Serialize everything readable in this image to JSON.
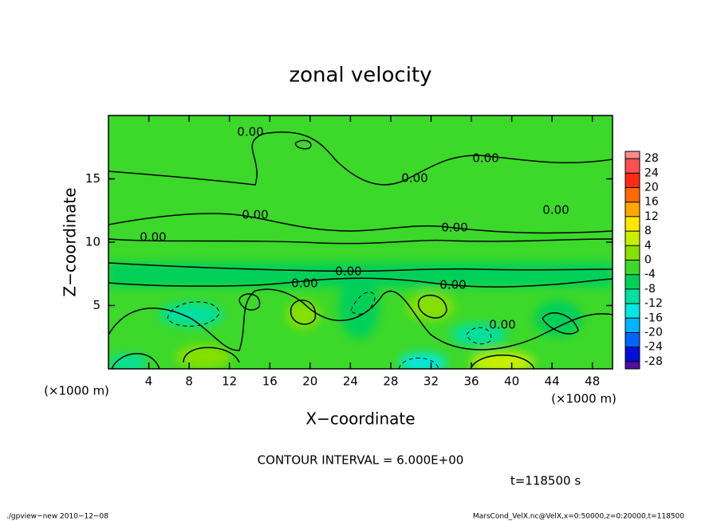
{
  "chart_data": {
    "type": "contour",
    "title": "zonal velocity",
    "x_label": "X−coordinate",
    "y_label": "Z−coordinate",
    "x_unit_label": "(×1000 m)",
    "y_unit_label": "(×1000 m)",
    "xlim": [
      0,
      50
    ],
    "xticks": [
      4,
      8,
      12,
      16,
      20,
      24,
      28,
      32,
      36,
      40,
      44,
      48
    ],
    "ylim": [
      0,
      20
    ],
    "yticks": [
      5,
      10,
      15
    ],
    "contour_labels": [
      "0.00",
      "0.00",
      "0.00",
      "0.00",
      "0.00",
      "0.00",
      "0.00",
      "0.00",
      "0.00",
      "0.00",
      "0.00"
    ],
    "colorbar": {
      "levels": [
        28,
        24,
        20,
        16,
        12,
        8,
        4,
        0,
        -4,
        -8,
        -12,
        -16,
        -20,
        -24,
        -28
      ],
      "colors": [
        "#ff8a8a",
        "#ff5050",
        "#ff2a10",
        "#ff6a00",
        "#ffa800",
        "#ffe800",
        "#c8f000",
        "#86e000",
        "#3cd82a",
        "#00d05a",
        "#00e0a0",
        "#00e8e0",
        "#00b4ff",
        "#0064ff",
        "#0010d8",
        "#5010a0"
      ]
    },
    "contour_interval": "CONTOUR INTERVAL = 6.000E+00",
    "time_label": "t=118500 s",
    "footer_left": "./gpview−new  2010−12−08",
    "footer_right": "MarsCond_VelX.nc@VelX,x=0:50000,z=0:20000,t=118500"
  }
}
